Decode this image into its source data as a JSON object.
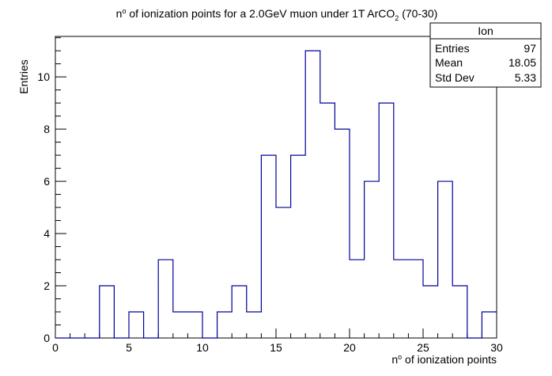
{
  "chart_data": {
    "type": "histogram",
    "title": "n",
    "title_parts": {
      "sup_text": "o",
      "text_a": " of ionization points for a 2.0GeV muon under 1T ArCO",
      "sub_text": "2",
      "text_b": " (70-30)"
    },
    "xlabel": "n",
    "xlabel_sup": "o",
    "xlabel_rest": " of ionization points",
    "ylabel": "Entries",
    "xlim": [
      0,
      30
    ],
    "ylim": [
      0,
      11.55
    ],
    "bin_width": 1,
    "x_ticks": [
      0,
      5,
      10,
      15,
      20,
      25,
      30
    ],
    "y_ticks": [
      0,
      2,
      4,
      6,
      8,
      10
    ],
    "bins": [
      {
        "x": 0,
        "count": 0
      },
      {
        "x": 1,
        "count": 0
      },
      {
        "x": 2,
        "count": 0
      },
      {
        "x": 3,
        "count": 2
      },
      {
        "x": 4,
        "count": 0
      },
      {
        "x": 5,
        "count": 1
      },
      {
        "x": 6,
        "count": 0
      },
      {
        "x": 7,
        "count": 3
      },
      {
        "x": 8,
        "count": 1
      },
      {
        "x": 9,
        "count": 1
      },
      {
        "x": 10,
        "count": 0
      },
      {
        "x": 11,
        "count": 1
      },
      {
        "x": 12,
        "count": 2
      },
      {
        "x": 13,
        "count": 1
      },
      {
        "x": 14,
        "count": 7
      },
      {
        "x": 15,
        "count": 5
      },
      {
        "x": 16,
        "count": 7
      },
      {
        "x": 17,
        "count": 11
      },
      {
        "x": 18,
        "count": 9
      },
      {
        "x": 19,
        "count": 8
      },
      {
        "x": 20,
        "count": 3
      },
      {
        "x": 21,
        "count": 6
      },
      {
        "x": 22,
        "count": 9
      },
      {
        "x": 23,
        "count": 3
      },
      {
        "x": 24,
        "count": 3
      },
      {
        "x": 25,
        "count": 2
      },
      {
        "x": 26,
        "count": 6
      },
      {
        "x": 27,
        "count": 2
      },
      {
        "x": 28,
        "count": 0
      },
      {
        "x": 29,
        "count": 1
      }
    ],
    "line_color": "#000099",
    "stats_box": {
      "name": "Ion",
      "rows": [
        {
          "label": "Entries",
          "value": "97"
        },
        {
          "label": "Mean",
          "value": "18.05"
        },
        {
          "label": "Std Dev",
          "value": "5.33"
        }
      ]
    }
  }
}
